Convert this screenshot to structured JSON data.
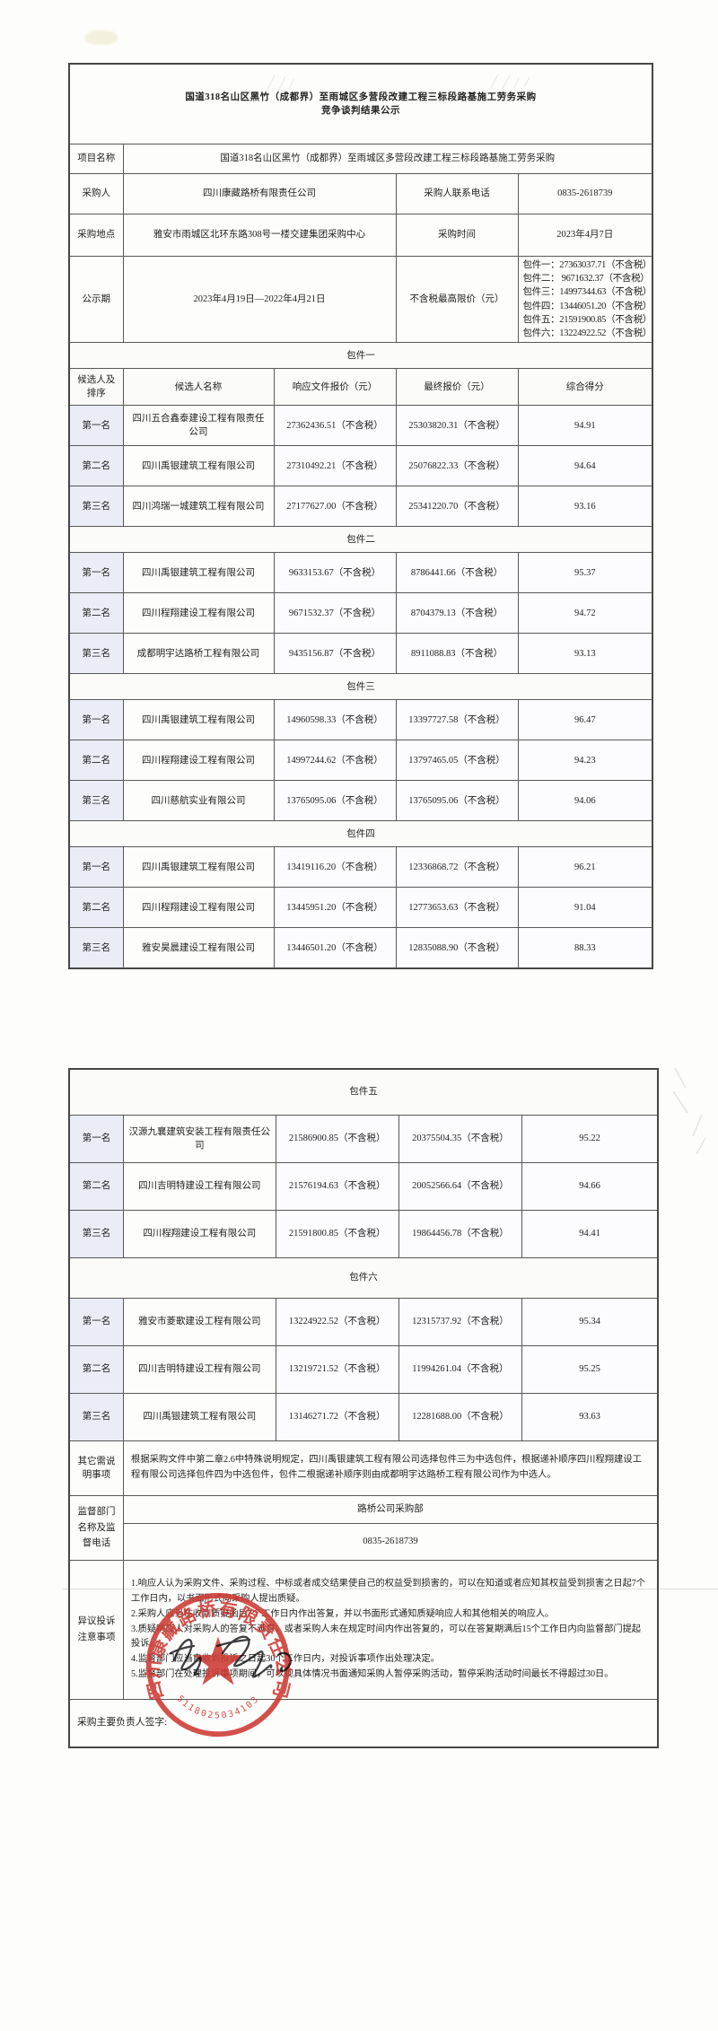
{
  "doc": {
    "title_line1": "国道318名山区黑竹（成都界）至雨城区多营段改建工程三标段路基施工劳务采购",
    "title_line2": "竞争谈判结果公示"
  },
  "info": {
    "project_label": "项目名称",
    "project_name": "国道318名山区黑竹（成都界）至雨城区多营段改建工程三标段路基施工劳务采购",
    "buyer_label": "采购人",
    "buyer": "四川康藏路桥有限责任公司",
    "phone_label": "采购人联系电话",
    "phone": "0835-2618739",
    "place_label": "采购地点",
    "place": "雅安市雨城区北环东路308号一楼交建集团采购中心",
    "time_label": "采购时间",
    "time": "2023年4月7日",
    "period_label": "公示期",
    "period": "2023年4月19日—2022年4月21日",
    "limit_label": "不含税最高限价（元）",
    "limits": [
      "包件一：27363037.71（不含税）",
      "包件二： 9671632.37（不含税）",
      "包件三：14997344.63（不含税）",
      "包件四：13446051.20（不含税）",
      "包件五：21591900.85（不含税）",
      "包件六：13224922.52（不含税）"
    ]
  },
  "table_headers": [
    "候选人及排序",
    "候选人名称",
    "响应文件报价（元）",
    "最终报价（元）",
    "综合得分"
  ],
  "packages": [
    {
      "name": "包件一",
      "show_header": true,
      "rows": [
        {
          "rank": "第一名",
          "name": "四川五合鑫泰建设工程有限责任公司",
          "bid": "27362436.51（不含税）",
          "final": "25303820.31（不含税）",
          "score": "94.91"
        },
        {
          "rank": "第二名",
          "name": "四川禹银建筑工程有限公司",
          "bid": "27310492.21（不含税）",
          "final": "25076822.33（不含税）",
          "score": "94.64"
        },
        {
          "rank": "第三名",
          "name": "四川鸿瑞一城建筑工程有限公司",
          "bid": "27177627.00（不含税）",
          "final": "25341220.70（不含税）",
          "score": "93.16"
        }
      ]
    },
    {
      "name": "包件二",
      "show_header": false,
      "rows": [
        {
          "rank": "第一名",
          "name": "四川禹银建筑工程有限公司",
          "bid": "9633153.67（不含税）",
          "final": "8786441.66（不含税）",
          "score": "95.37"
        },
        {
          "rank": "第二名",
          "name": "四川程翔建设工程有限公司",
          "bid": "9671532.37（不含税）",
          "final": "8704379.13（不含税）",
          "score": "94.72"
        },
        {
          "rank": "第三名",
          "name": "成都明宇达路桥工程有限公司",
          "bid": "9435156.87（不含税）",
          "final": "8911088.83（不含税）",
          "score": "93.13"
        }
      ]
    },
    {
      "name": "包件三",
      "show_header": false,
      "rows": [
        {
          "rank": "第一名",
          "name": "四川禹银建筑工程有限公司",
          "bid": "14960598.33（不含税）",
          "final": "13397727.58（不含税）",
          "score": "96.47"
        },
        {
          "rank": "第二名",
          "name": "四川程翔建设工程有限公司",
          "bid": "14997244.62（不含税）",
          "final": "13797465.05（不含税）",
          "score": "94.23"
        },
        {
          "rank": "第三名",
          "name": "四川慈航实业有限公司",
          "bid": "13765095.06（不含税）",
          "final": "13765095.06（不含税）",
          "score": "94.06"
        }
      ]
    },
    {
      "name": "包件四",
      "show_header": false,
      "rows": [
        {
          "rank": "第一名",
          "name": "四川禹银建筑工程有限公司",
          "bid": "13419116.20（不含税）",
          "final": "12336868.72（不含税）",
          "score": "96.21"
        },
        {
          "rank": "第二名",
          "name": "四川程翔建设工程有限公司",
          "bid": "13445951.20（不含税）",
          "final": "12773653.63（不含税）",
          "score": "91.04"
        },
        {
          "rank": "第三名",
          "name": "雅安昊晨建设工程有限公司",
          "bid": "13446501.20（不含税）",
          "final": "12835088.90（不含税）",
          "score": "88.33"
        }
      ]
    },
    {
      "name": "包件五",
      "show_header": false,
      "rows": [
        {
          "rank": "第一名",
          "name": "汉源九襄建筑安装工程有限责任公司",
          "bid": "21586900.85（不含税）",
          "final": "20375504.35（不含税）",
          "score": "95.22"
        },
        {
          "rank": "第二名",
          "name": "四川吉明特建设工程有限公司",
          "bid": "21576194.63（不含税）",
          "final": "20052566.64（不含税）",
          "score": "94.66"
        },
        {
          "rank": "第三名",
          "name": "四川程翔建设工程有限公司",
          "bid": "21591800.85（不含税）",
          "final": "19864456.78（不含税）",
          "score": "94.41"
        }
      ]
    },
    {
      "name": "包件六",
      "show_header": false,
      "rows": [
        {
          "rank": "第一名",
          "name": "雅安市菱歌建设工程有限公司",
          "bid": "13224922.52（不含税）",
          "final": "12315737.92（不含税）",
          "score": "95.34"
        },
        {
          "rank": "第二名",
          "name": "四川吉明特建设工程有限公司",
          "bid": "13219721.52（不含税）",
          "final": "11994261.04（不含税）",
          "score": "95.25"
        },
        {
          "rank": "第三名",
          "name": "四川禹银建筑工程有限公司",
          "bid": "13146271.72（不含税）",
          "final": "12281688.00（不含税）",
          "score": "93.63"
        }
      ]
    }
  ],
  "notes": {
    "label": "其它需说明事项",
    "text": "根据采购文件中第二章2.6中特殊说明规定，四川禹银建筑工程有限公司选择包件三为中选包件，根据递补顺序四川程翔建设工程有限公司选择包件四为中选包件，包件二根据递补顺序则由成都明宇达路桥工程有限公司作为中选人。"
  },
  "supervision": {
    "label": "监督部门名称及监督电话",
    "department": "路桥公司采购部",
    "phone": "0835-2618739"
  },
  "objection": {
    "label": "异议投诉注意事项",
    "items": [
      "1.响应人认为采购文件、采购过程、中标或者成交结果使自己的权益受到损害的，可以在知道或者应知其权益受到损害之日起7个工作日内，以书面形式向采购人提出质疑。",
      "2.采购人应当在收到质疑函后7个工作日内作出答复，并以书面形式通知质疑响应人和其他相关的响应人。",
      "3.质疑响应人对采购人的答复不满意，或者采购人未在规定时间内作出答复的，可以在答复期满后15个工作日内向监督部门提起投诉。",
      "4.监督部门应当自收到投诉之日起30个工作日内，对投诉事项作出处理决定。",
      "5.监督部门在处理投诉事项期间，可以视具体情况书面通知采购人暂停采购活动，暂停采购活动时间最长不得超过30日。"
    ]
  },
  "signature": {
    "label": "采购主要负责人签字:"
  },
  "stamp": {
    "company": "四川康藏路桥有限责任公司",
    "number": "5118025034103",
    "color": "#cd3a32"
  }
}
